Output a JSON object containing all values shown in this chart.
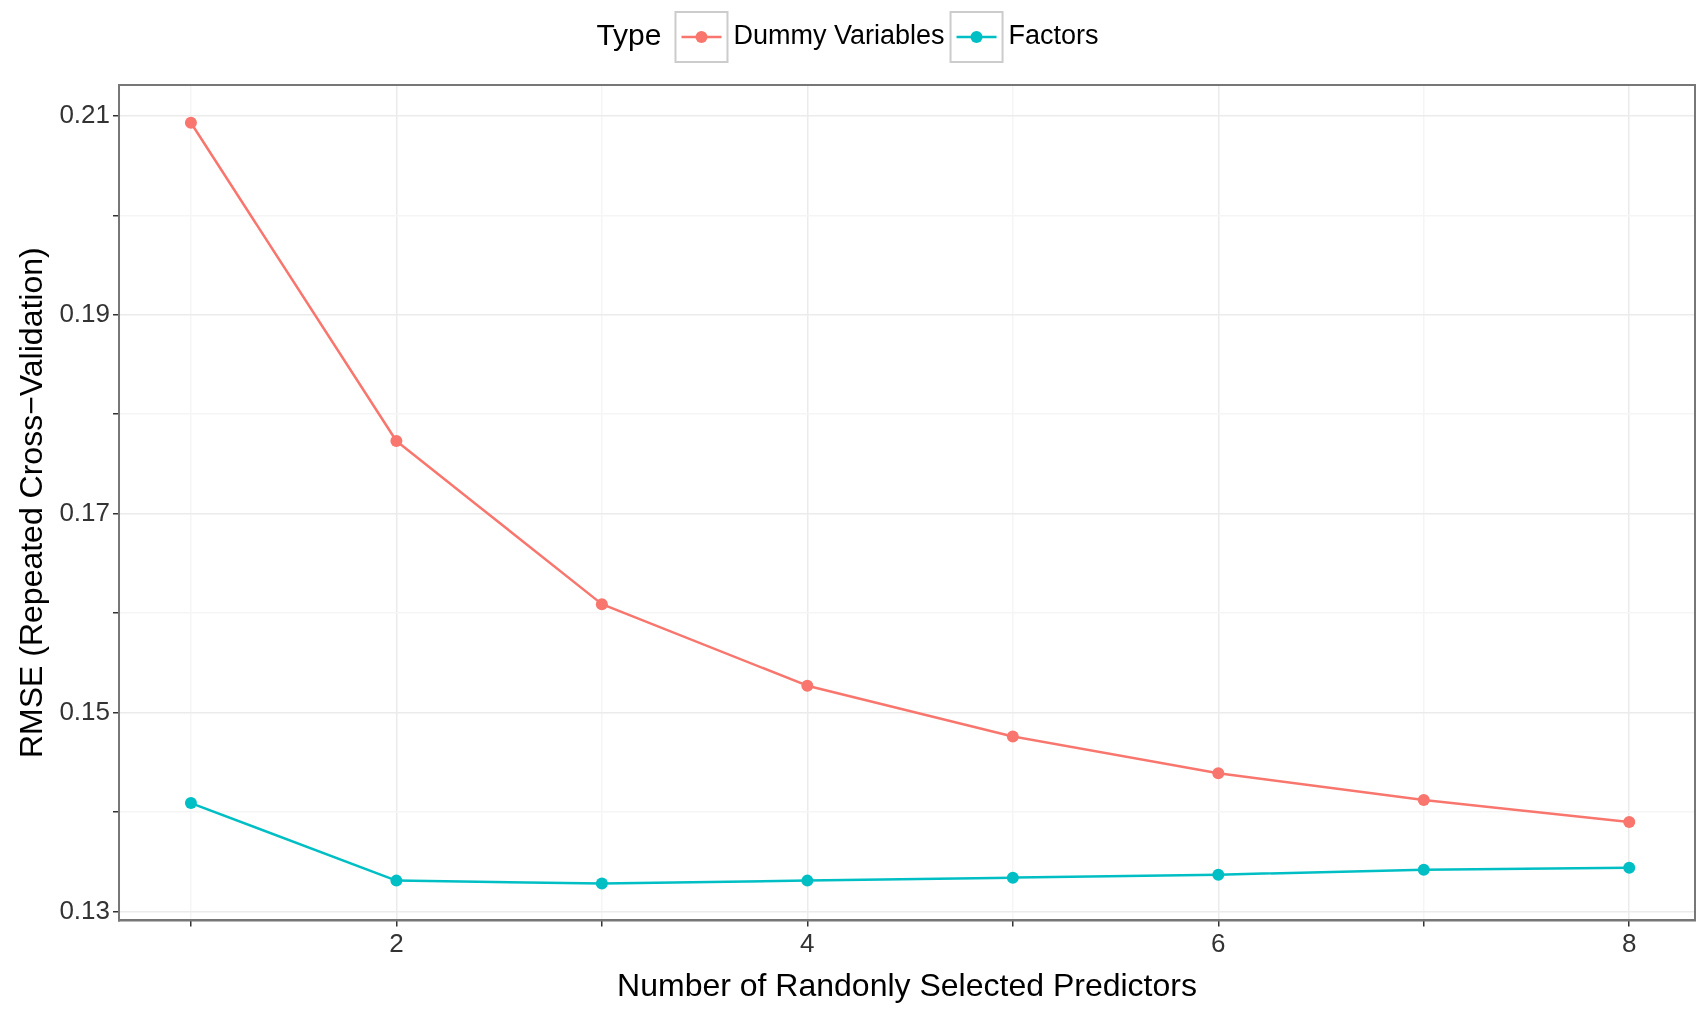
{
  "chart_data": {
    "type": "line",
    "xlabel": "Number of Randonly Selected Predictors",
    "ylabel": "RMSE (Repeated Cross−Validation)",
    "legend_title": "Type",
    "legend": "top",
    "grid": true,
    "marker": "circle",
    "line_style": "solid",
    "x": [
      1,
      2,
      3,
      4,
      5,
      6,
      7,
      8
    ],
    "series": [
      {
        "name": "Dummy Variables",
        "color": "#f8766d",
        "values": [
          0.2093,
          0.1773,
          0.1609,
          0.1527,
          0.1476,
          0.1439,
          0.1412,
          0.139
        ]
      },
      {
        "name": "Factors",
        "color": "#00bfc4",
        "values": [
          0.1409,
          0.1331,
          0.1328,
          0.1331,
          0.1334,
          0.1337,
          0.1342,
          0.1344
        ]
      }
    ],
    "xlim": [
      0.65,
      8.32
    ],
    "xticks": [
      {
        "value": 1,
        "label": null
      },
      2,
      {
        "value": 3,
        "label": null
      },
      4,
      {
        "value": 5,
        "label": null
      },
      6,
      {
        "value": 7,
        "label": null
      },
      8
    ],
    "ylim": [
      0.1291,
      0.2131
    ],
    "yticks": [
      0.13,
      {
        "value": 0.14,
        "label": null
      },
      0.15,
      {
        "value": 0.16,
        "label": null
      },
      0.17,
      {
        "value": 0.18,
        "label": null
      },
      0.19,
      {
        "value": 0.2,
        "label": null
      },
      0.21
    ]
  }
}
